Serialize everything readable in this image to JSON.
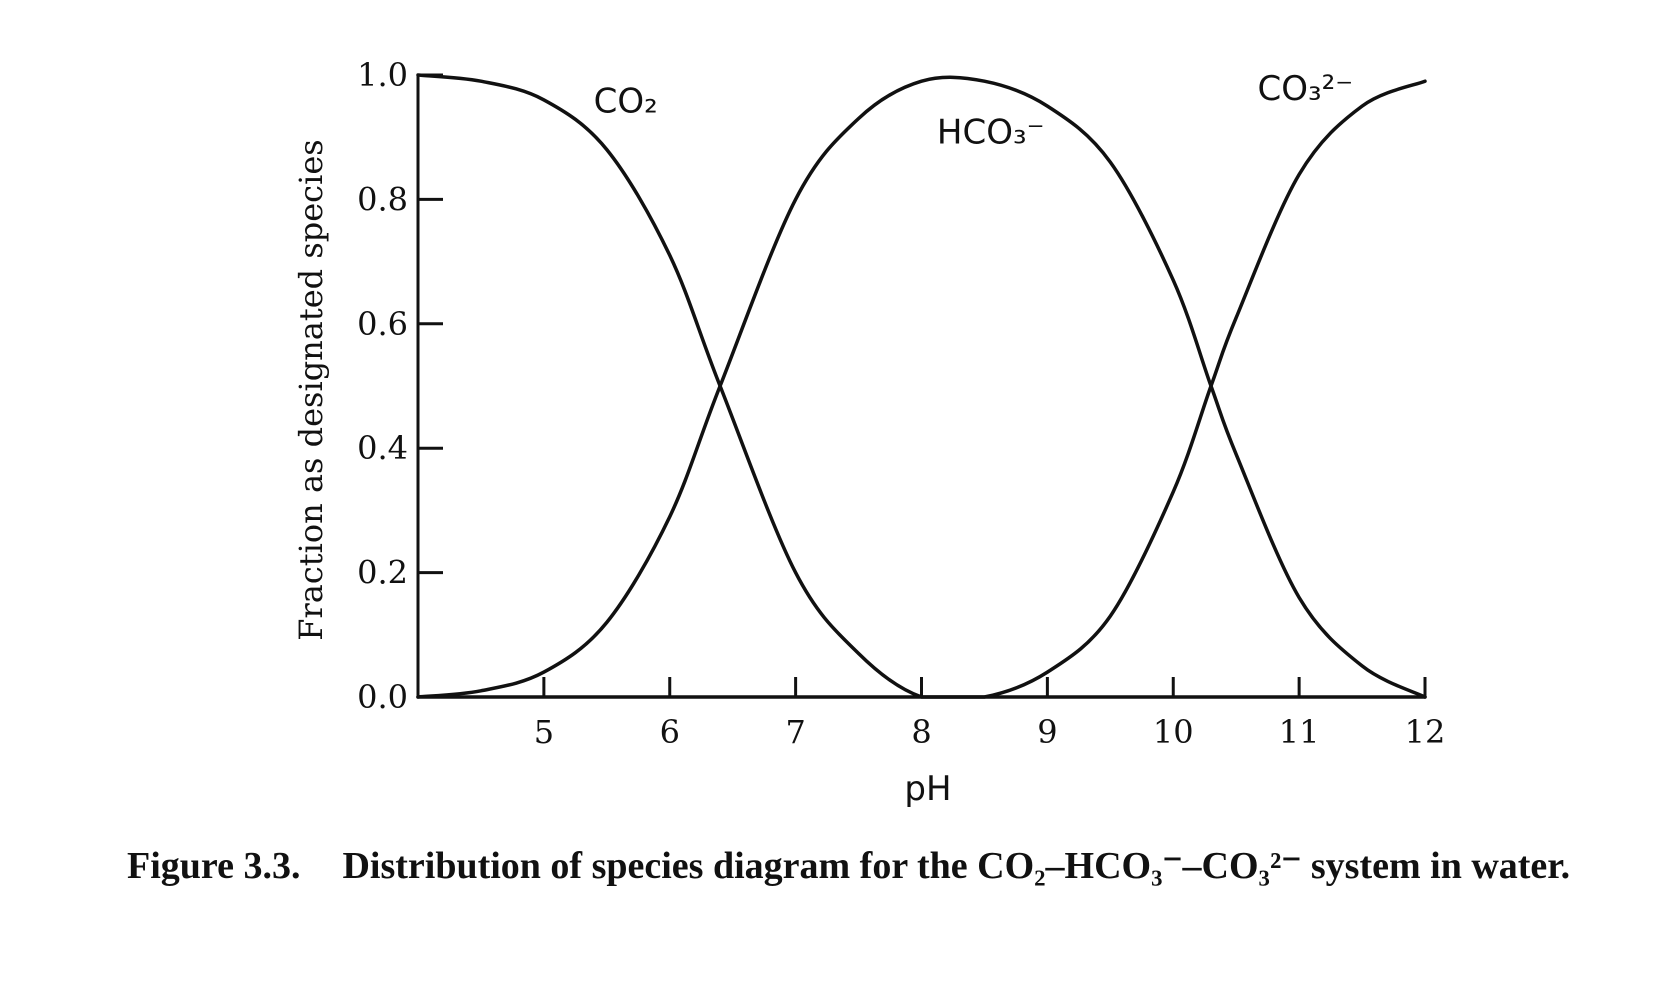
{
  "chart_data": {
    "type": "line",
    "xlabel": "pH",
    "ylabel": "Fraction as designated species",
    "xlim": [
      4,
      12
    ],
    "ylim": [
      0,
      1.0
    ],
    "x_ticks": [
      "5",
      "6",
      "7",
      "8",
      "9",
      "10",
      "11",
      "12"
    ],
    "y_ticks": [
      "0.0",
      "0.2",
      "0.4",
      "0.6",
      "0.8",
      "1.0"
    ],
    "grid": false,
    "series": [
      {
        "name": "CO₂",
        "x": [
          4.0,
          4.5,
          5.0,
          5.5,
          6.0,
          6.4,
          7.0,
          7.5,
          8.0,
          8.5,
          9.0,
          10.0,
          11.0,
          12.0
        ],
        "values": [
          1.0,
          0.99,
          0.96,
          0.88,
          0.71,
          0.5,
          0.2,
          0.07,
          0.0,
          0.0,
          0.0,
          0.0,
          0.0,
          0.0
        ]
      },
      {
        "name": "HCO₃⁻",
        "x": [
          4.0,
          4.5,
          5.0,
          5.5,
          6.0,
          6.4,
          7.0,
          7.5,
          8.0,
          8.5,
          9.0,
          9.5,
          10.0,
          10.3,
          10.5,
          11.0,
          11.5,
          12.0
        ],
        "values": [
          0.0,
          0.01,
          0.04,
          0.12,
          0.29,
          0.5,
          0.8,
          0.93,
          0.99,
          0.99,
          0.95,
          0.86,
          0.67,
          0.5,
          0.39,
          0.16,
          0.05,
          0.0
        ]
      },
      {
        "name": "CO₃²⁻",
        "x": [
          4.0,
          8.0,
          8.5,
          9.0,
          9.5,
          10.0,
          10.3,
          10.5,
          11.0,
          11.5,
          12.0
        ],
        "values": [
          0.0,
          0.0,
          0.0,
          0.04,
          0.13,
          0.33,
          0.5,
          0.61,
          0.84,
          0.95,
          0.99
        ]
      }
    ]
  },
  "caption": {
    "figure_number": "Figure 3.3.",
    "text": "Distribution of species diagram for the CO₂–HCO₃⁻–CO₃²⁻ system in water."
  }
}
